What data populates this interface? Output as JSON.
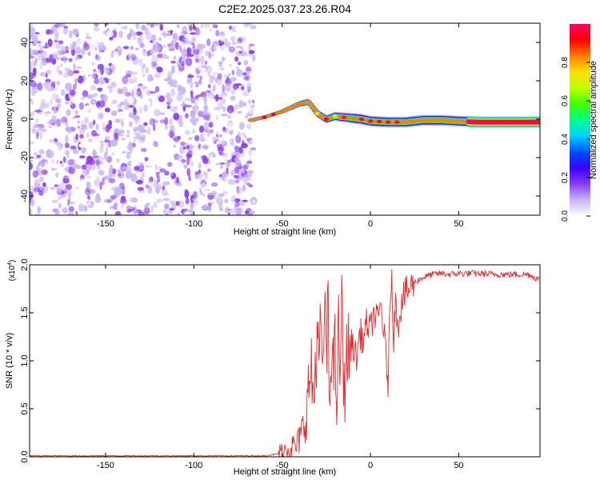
{
  "figure": {
    "title": "C2E2.2025.037.23.26.R04"
  },
  "chart_data": [
    {
      "type": "heatmap",
      "xlabel": "Height of straight line (km)",
      "ylabel": "Frequency (Hz)",
      "xlim": [
        -193,
        96
      ],
      "ylim": [
        -50,
        50
      ],
      "x_ticks": [
        -150,
        -100,
        -50,
        0,
        50
      ],
      "y_ticks": [
        -40,
        -20,
        0,
        20,
        40
      ],
      "x_tick_labels": [
        "-150",
        "-100",
        "-50",
        "0",
        "50"
      ],
      "y_tick_labels": [
        "-40",
        "-20",
        "0",
        "20",
        "40"
      ],
      "noise_region_x": [
        -193,
        -66
      ],
      "ridge": {
        "x": [
          -68,
          -60,
          -50,
          -45,
          -40,
          -35,
          -30,
          -25,
          -20,
          -15,
          -10,
          -5,
          0,
          10,
          20,
          30,
          40,
          50,
          60,
          70,
          80,
          96
        ],
        "freq": [
          -0.5,
          1,
          4,
          6,
          8,
          9,
          3,
          0,
          1.5,
          1,
          0.5,
          0,
          -1,
          -1.5,
          -1.5,
          -0.5,
          -0.5,
          -1,
          -1.5,
          -1.5,
          -1.5,
          -1.5
        ]
      },
      "colorbar": {
        "label": "Normalized spectral amplitude",
        "ticks": [
          0.0,
          0.2,
          0.4,
          0.6,
          0.8
        ],
        "tick_labels": [
          "0.0",
          "0.2",
          "0.4",
          "0.6",
          "0.8"
        ],
        "range": [
          0,
          1
        ],
        "colormap": [
          "#ffffff",
          "#c9b4f5",
          "#8a3cf0",
          "#3a00ff",
          "#0050ff",
          "#00d0ff",
          "#00ff90",
          "#40ff00",
          "#c0ff00",
          "#ffe000",
          "#ff8000",
          "#ff0000",
          "#ff0060"
        ]
      }
    },
    {
      "type": "line",
      "xlabel": "Height of straight line (km)",
      "ylabel": "SNR (10 * v/v)",
      "y_multiplier_label": "(x10",
      "y_multiplier_exp": "4",
      "y_multiplier_close": ")",
      "xlim": [
        -193,
        96
      ],
      "ylim": [
        0,
        2.0
      ],
      "x_ticks": [
        -150,
        -100,
        -50,
        0,
        50
      ],
      "y_ticks": [
        0.0,
        0.5,
        1.0,
        1.5,
        2.0
      ],
      "x_tick_labels": [
        "-150",
        "-100",
        "-50",
        "0",
        "50"
      ],
      "y_tick_labels": [
        "0.0",
        "0.5",
        "1.0",
        "1.5",
        "2.0"
      ],
      "line_color": "#e8292b",
      "series": [
        {
          "x": [
            -193,
            -150,
            -100,
            -60,
            -52,
            -48,
            -45,
            -42,
            -40,
            -38,
            -36,
            -34,
            -32,
            -30,
            -29,
            -28,
            -27,
            -26,
            -25,
            -24,
            -23,
            -22,
            -21,
            -20,
            -19,
            -18,
            -17,
            -16,
            -15,
            -14,
            -12,
            -10,
            -8,
            -6,
            -4,
            -2,
            0,
            2,
            4,
            6,
            8,
            10,
            11,
            12,
            13,
            14,
            16,
            18,
            20,
            22,
            25,
            30,
            35,
            40,
            45,
            50,
            60,
            70,
            80,
            90,
            96
          ],
          "y": [
            0.01,
            0.01,
            0.01,
            0.01,
            0.03,
            0.08,
            0.12,
            0.1,
            0.2,
            0.3,
            0.5,
            0.9,
            0.6,
            1.4,
            0.7,
            1.7,
            0.5,
            1.8,
            0.9,
            1.5,
            0.4,
            1.4,
            0.8,
            1.1,
            0.5,
            1.3,
            0.9,
            1.7,
            0.6,
            1.0,
            1.1,
            1.2,
            1.0,
            1.3,
            1.2,
            1.4,
            1.3,
            1.5,
            1.4,
            1.6,
            1.2,
            0.78,
            1.5,
            2.0,
            1.2,
            1.6,
            1.4,
            1.65,
            1.7,
            1.75,
            1.82,
            1.87,
            1.9,
            1.91,
            1.9,
            1.91,
            1.91,
            1.9,
            1.9,
            1.9,
            1.84
          ]
        }
      ]
    }
  ]
}
